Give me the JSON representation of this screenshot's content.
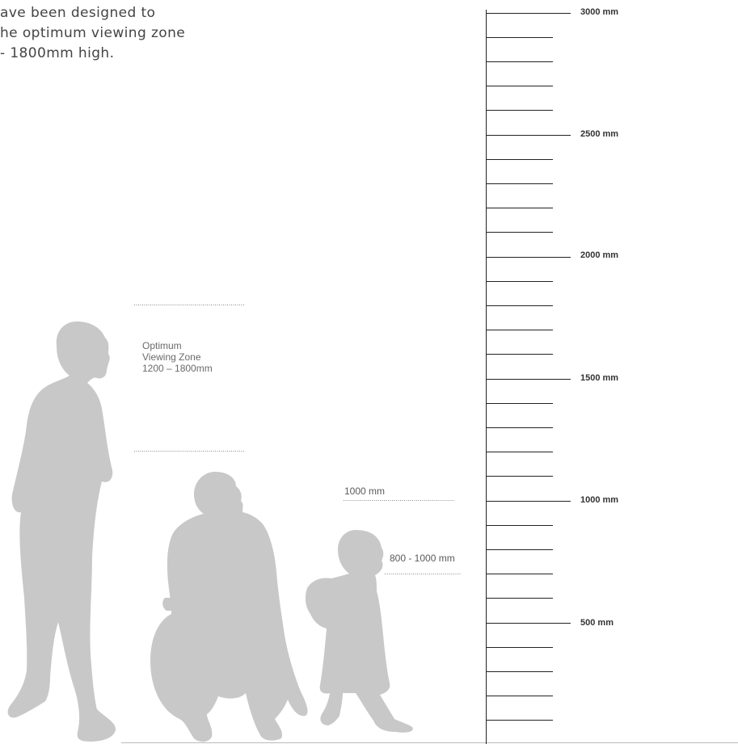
{
  "intro": {
    "line1": "ave been designed to",
    "line2": "he optimum viewing zone",
    "line3": " - 1800mm high."
  },
  "zone": {
    "line1": "Optimum",
    "line2": "Viewing Zone",
    "line3": "1200 – 1800mm"
  },
  "markers": {
    "wheelchair": "1000 mm",
    "child": "800 - 1000 mm"
  },
  "scale": {
    "labels": [
      "3000 mm",
      "2500 mm",
      "2000 mm",
      "1500 mm",
      "1000 mm",
      "500 mm"
    ],
    "max_mm": 3000,
    "minor_step_mm": 100
  },
  "colors": {
    "silhouette": "#c8c8c9",
    "scale_line": "#222222",
    "dotted": "#8a8a8a"
  }
}
